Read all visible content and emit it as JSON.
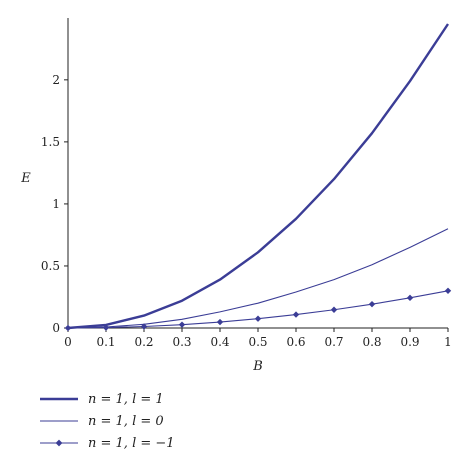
{
  "chart_data": {
    "type": "line",
    "xlabel": "B",
    "ylabel": "E",
    "xlim": [
      0,
      1
    ],
    "ylim": [
      0,
      2.45
    ],
    "x_ticks": [
      "0",
      "0.1",
      "0.2",
      "0.3",
      "0.4",
      "0.5",
      "0.6",
      "0.7",
      "0.8",
      "0.9",
      "1"
    ],
    "y_ticks": [
      "0",
      "0.5",
      "1",
      "1.5",
      "2"
    ],
    "grid": false,
    "legend_position": "bottom-left",
    "color": "#3b3d96",
    "x": [
      0,
      0.1,
      0.2,
      0.3,
      0.4,
      0.5,
      0.6,
      0.7,
      0.8,
      0.9,
      1.0
    ],
    "series": [
      {
        "name": "n = 1, l = 1",
        "style": "thick",
        "values": [
          0,
          0.025,
          0.1,
          0.22,
          0.39,
          0.61,
          0.88,
          1.2,
          1.57,
          1.99,
          2.45
        ]
      },
      {
        "name": "n = 1, l = 0",
        "style": "thin",
        "values": [
          0,
          0.008,
          0.03,
          0.07,
          0.13,
          0.2,
          0.29,
          0.39,
          0.51,
          0.65,
          0.8
        ]
      },
      {
        "name": "n = 1, l = −1",
        "style": "marker",
        "values": [
          0,
          0.003,
          0.012,
          0.027,
          0.048,
          0.075,
          0.108,
          0.147,
          0.192,
          0.243,
          0.3
        ]
      }
    ]
  }
}
